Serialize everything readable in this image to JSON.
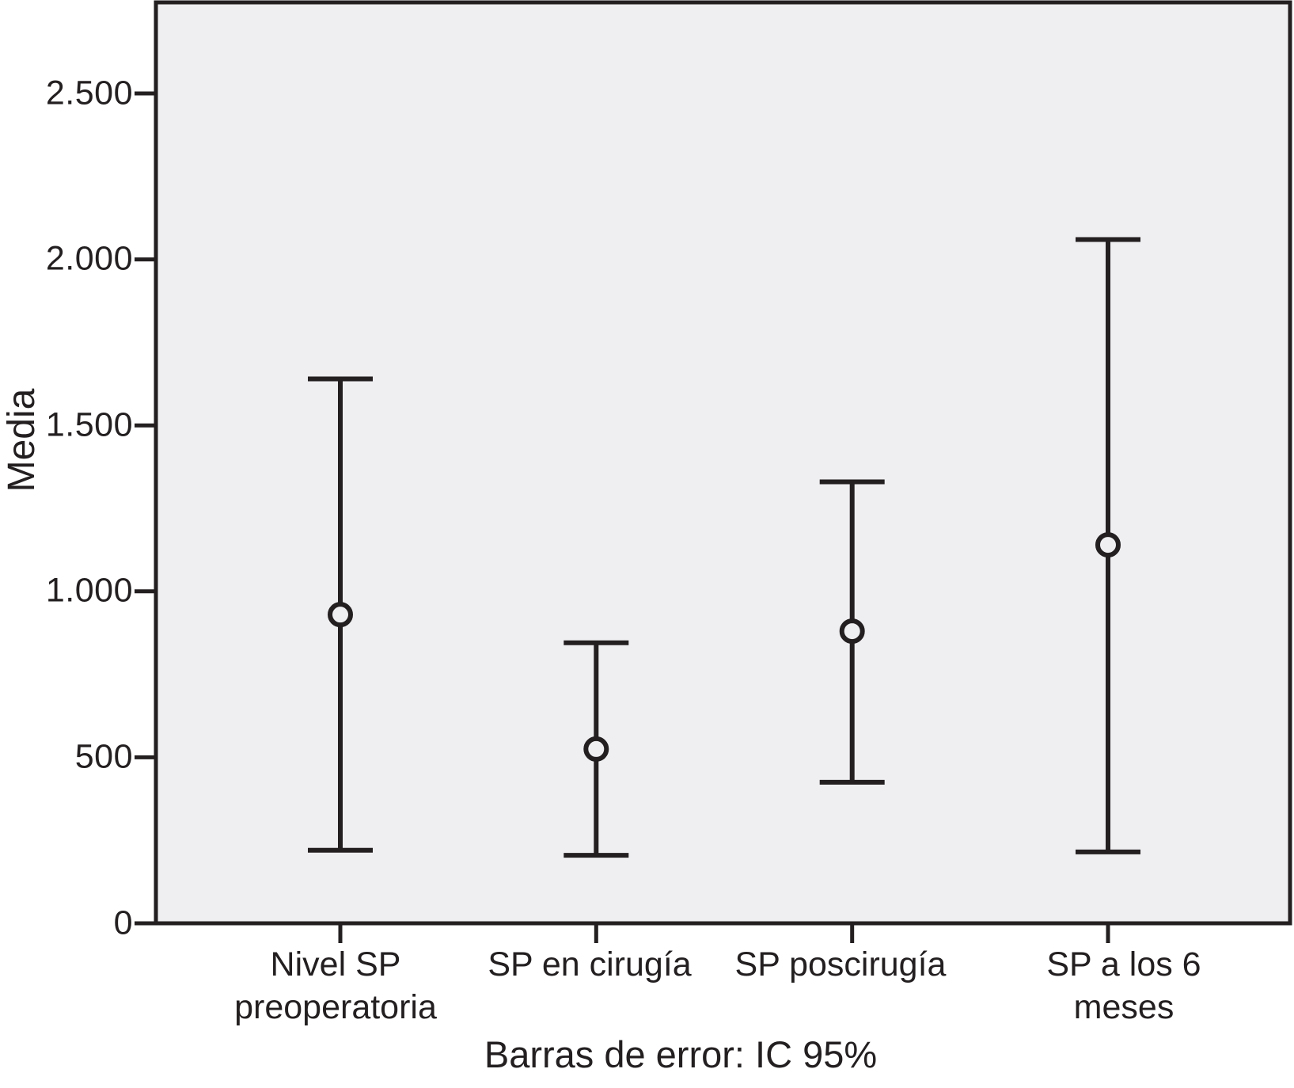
{
  "chart_data": {
    "type": "errorbar",
    "title": "",
    "ylabel": "Media",
    "xlabel": "",
    "caption": "Barras de error: IC 95%",
    "ci_level": "95%",
    "categories": [
      "Nivel SP\npreoperatoria",
      "SP en cirugía",
      "SP poscirugía",
      "SP a los 6 meses"
    ],
    "ytick_labels": [
      "2.500",
      "2.000",
      "1.500",
      "1.000",
      "500",
      "0"
    ],
    "ytick_values": [
      2500,
      2000,
      1500,
      1000,
      500,
      0
    ],
    "ylim": [
      0,
      2770
    ],
    "grid": false,
    "legend_position": "none",
    "marker": "open-circle",
    "series": [
      {
        "name": "Media",
        "means": [
          930,
          525,
          880,
          1140
        ],
        "ci_low": [
          220,
          205,
          425,
          215
        ],
        "ci_high": [
          1640,
          845,
          1330,
          2060
        ]
      }
    ],
    "colors": {
      "line": "#231f20",
      "plot_bg": "#efeef0",
      "page_bg": "#ffffff"
    }
  }
}
